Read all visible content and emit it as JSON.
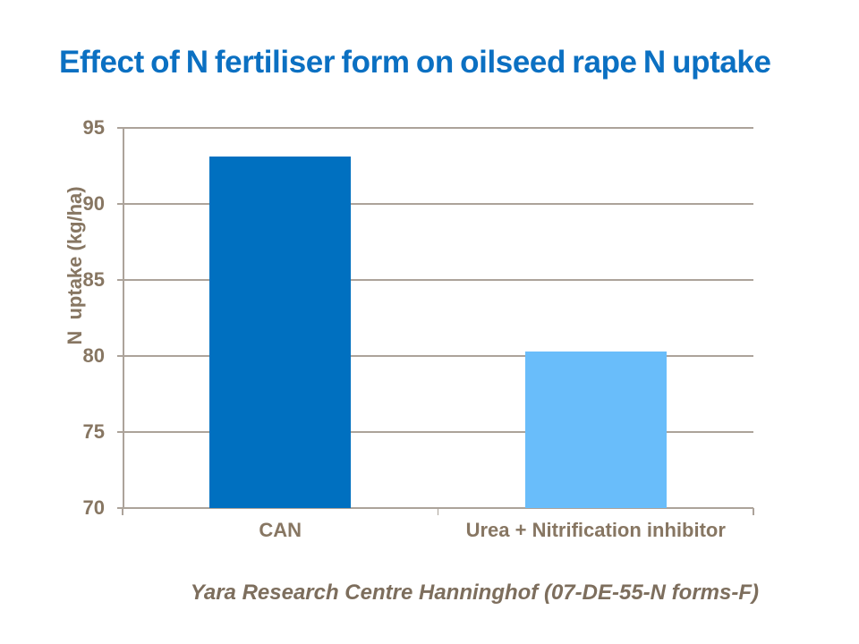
{
  "title": "Effect of N fertiliser form on oilseed rape N uptake",
  "footer": "Yara Research Centre Hanninghof (07-DE-55-N forms-F)",
  "colors": {
    "title_text": "#0B70C2",
    "axis_text": "#877662",
    "footer_text": "#7D6E5D",
    "grid_line": "#ACA39A",
    "bar_can": "#0070C0",
    "bar_urea": "#69BDFA"
  },
  "chart_data": {
    "type": "bar",
    "title": "Effect of N fertiliser form on oilseed rape N uptake",
    "categories": [
      "CAN",
      "Urea + Nitrification inhibitor"
    ],
    "values": [
      93.1,
      80.3
    ],
    "series_colors": [
      "#0070C0",
      "#69BDFA"
    ],
    "xlabel": "",
    "ylabel": "N  uptake (kg/ha)",
    "ylim": [
      70,
      95
    ],
    "yticks": [
      70,
      75,
      80,
      85,
      90,
      95
    ],
    "grid": "horizontal",
    "legend": "none",
    "source": "Yara Research Centre Hanninghof (07-DE-55-N forms-F)"
  }
}
